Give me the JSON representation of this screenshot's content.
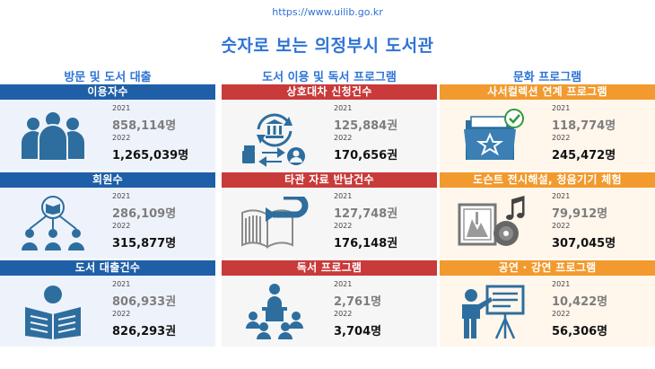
{
  "url": "https://www.uilib.go.kr",
  "title": "숫자로 보는 의정부시 도서관",
  "columns": [
    {
      "title": "방문 및 도서 대출",
      "cards": [
        {
          "label": "이용자수",
          "icon": "users-group-icon",
          "year1": "2021",
          "value1": "858,114명",
          "year2": "2022",
          "value2": "1,265,039명"
        },
        {
          "label": "회원수",
          "icon": "member-network-icon",
          "year1": "2021",
          "value1": "286,109명",
          "year2": "2022",
          "value2": "315,877명"
        },
        {
          "label": "도서 대출건수",
          "icon": "reader-book-icon",
          "year1": "2021",
          "value1": "806,933권",
          "year2": "2022",
          "value2": "826,293권"
        }
      ]
    },
    {
      "title": "도서 이용 및 독서 프로그램",
      "cards": [
        {
          "label": "상호대차 신청건수",
          "icon": "interlibrary-loan-icon",
          "year1": "2021",
          "value1": "125,884권",
          "year2": "2022",
          "value2": "170,656권"
        },
        {
          "label": "타관 자료 반납건수",
          "icon": "book-return-icon",
          "year1": "2021",
          "value1": "127,748권",
          "year2": "2022",
          "value2": "176,148권"
        },
        {
          "label": "독서 프로그램",
          "icon": "reading-class-icon",
          "year1": "2021",
          "value1": "2,761명",
          "year2": "2022",
          "value2": "3,704명"
        }
      ]
    },
    {
      "title": "문화 프로그램",
      "cards": [
        {
          "label": "사서컬렉션 연계 프로그램",
          "icon": "collection-folder-icon",
          "year1": "2021",
          "value1": "118,774명",
          "year2": "2022",
          "value2": "245,472명"
        },
        {
          "label": "도슨트 전시해설, 청음기기 체험",
          "icon": "exhibition-music-icon",
          "year1": "2021",
          "value1": "79,912명",
          "year2": "2022",
          "value2": "307,045명"
        },
        {
          "label": "공연 · 강연 프로그램",
          "icon": "lecture-presenter-icon",
          "year1": "2021",
          "value1": "10,422명",
          "year2": "2022",
          "value2": "56,306명"
        }
      ]
    }
  ]
}
